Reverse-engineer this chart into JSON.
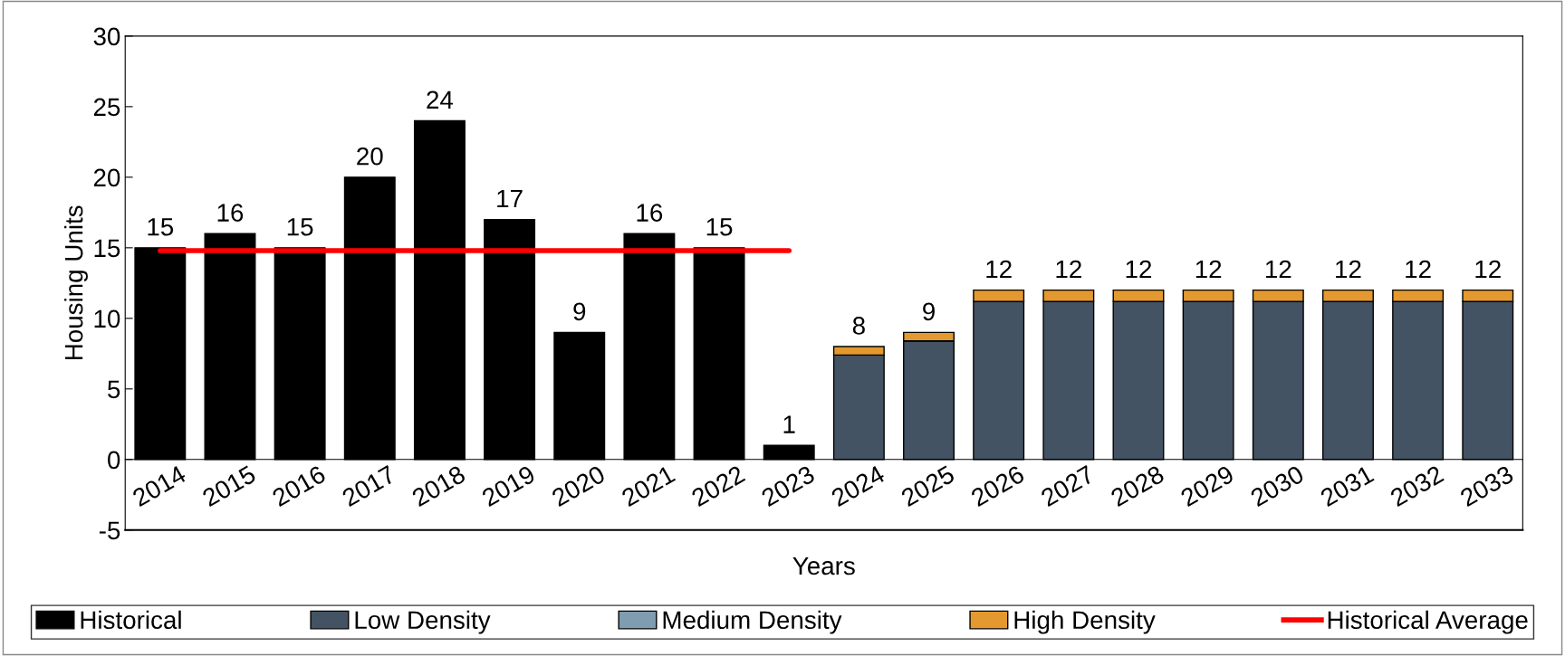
{
  "chart_data": {
    "type": "bar",
    "stacked": true,
    "xlabel": "Years",
    "ylabel": "Housing Units",
    "categories": [
      "2014",
      "2015",
      "2016",
      "2017",
      "2018",
      "2019",
      "2020",
      "2021",
      "2022",
      "2023",
      "2024",
      "2025",
      "2026",
      "2027",
      "2028",
      "2029",
      "2030",
      "2031",
      "2032",
      "2033"
    ],
    "series": [
      {
        "name": "Historical",
        "color": "#000000",
        "values": [
          15,
          16,
          15,
          20,
          24,
          17,
          9,
          16,
          15,
          1,
          null,
          null,
          null,
          null,
          null,
          null,
          null,
          null,
          null,
          null
        ]
      },
      {
        "name": "Low Density",
        "color": "#435363",
        "values": [
          null,
          null,
          null,
          null,
          null,
          null,
          null,
          null,
          null,
          null,
          7.4,
          8.4,
          11.2,
          11.2,
          11.2,
          11.2,
          11.2,
          11.2,
          11.2,
          11.2
        ]
      },
      {
        "name": "Medium Density",
        "color": "#7f9cb0",
        "values": [
          null,
          null,
          null,
          null,
          null,
          null,
          null,
          null,
          null,
          null,
          0,
          0,
          0,
          0,
          0,
          0,
          0,
          0,
          0,
          0
        ]
      },
      {
        "name": "High Density",
        "color": "#e3992f",
        "values": [
          null,
          null,
          null,
          null,
          null,
          null,
          null,
          null,
          null,
          null,
          0.6,
          0.6,
          0.8,
          0.8,
          0.8,
          0.8,
          0.8,
          0.8,
          0.8,
          0.8
        ]
      },
      {
        "name": "Historical Average",
        "type": "line",
        "color": "#ff0000",
        "values": [
          14.8,
          14.8,
          14.8,
          14.8,
          14.8,
          14.8,
          14.8,
          14.8,
          14.8,
          14.8,
          null,
          null,
          null,
          null,
          null,
          null,
          null,
          null,
          null,
          null
        ]
      }
    ],
    "totals": [
      "15",
      "16",
      "15",
      "20",
      "24",
      "17",
      "9",
      "16",
      "15",
      "1",
      "8",
      "9",
      "12",
      "12",
      "12",
      "12",
      "12",
      "12",
      "12",
      "12"
    ],
    "ylim": [
      -5,
      30
    ],
    "yticks": [
      -5,
      0,
      5,
      10,
      15,
      20,
      25,
      30
    ],
    "grid": false,
    "legend": "bottom",
    "marker": "none",
    "line_style": "solid"
  }
}
